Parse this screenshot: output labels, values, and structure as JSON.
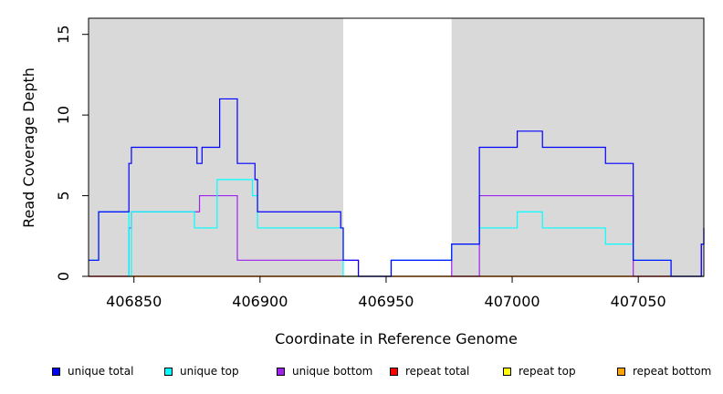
{
  "chart_data": {
    "type": "line",
    "title": "",
    "xlabel": "Coordinate in Reference Genome",
    "ylabel": "Read Coverage Depth",
    "xlim": [
      406832,
      407076
    ],
    "ylim": [
      0,
      16
    ],
    "xticks": [
      406850,
      406900,
      406950,
      407000,
      407050
    ],
    "yticks": [
      0,
      5,
      10,
      15
    ],
    "shaded_regions": [
      [
        406832,
        406933
      ],
      [
        406976,
        407076
      ]
    ],
    "legend_placement": "bottom",
    "series": [
      {
        "name": "unique total",
        "color": "#0000ff",
        "steps": [
          [
            406832,
            1
          ],
          [
            406836,
            4
          ],
          [
            406848,
            7
          ],
          [
            406849,
            8
          ],
          [
            406875,
            7
          ],
          [
            406877,
            8
          ],
          [
            406884,
            11
          ],
          [
            406891,
            7
          ],
          [
            406898,
            6
          ],
          [
            406899,
            4
          ],
          [
            406932,
            3
          ],
          [
            406933,
            1
          ],
          [
            406939,
            0
          ],
          [
            406952,
            1
          ],
          [
            406976,
            2
          ],
          [
            406987,
            8
          ],
          [
            407002,
            9
          ],
          [
            407012,
            8
          ],
          [
            407037,
            7
          ],
          [
            407048,
            1
          ],
          [
            407063,
            0
          ],
          [
            407075,
            2
          ],
          [
            407076,
            3
          ]
        ]
      },
      {
        "name": "unique top",
        "color": "#00ffff",
        "steps": [
          [
            406832,
            1
          ],
          [
            406836,
            4
          ],
          [
            406848,
            0
          ],
          [
            406849,
            4
          ],
          [
            406874,
            3
          ],
          [
            406883,
            6
          ],
          [
            406897,
            5
          ],
          [
            406899,
            3
          ],
          [
            406933,
            0
          ],
          [
            406939,
            0
          ],
          [
            406952,
            1
          ],
          [
            406976,
            2
          ],
          [
            406987,
            3
          ],
          [
            407002,
            4
          ],
          [
            407012,
            3
          ],
          [
            407037,
            2
          ],
          [
            407048,
            1
          ],
          [
            407063,
            0
          ],
          [
            407076,
            0
          ]
        ]
      },
      {
        "name": "unique bottom",
        "color": "#a020f0",
        "steps": [
          [
            406832,
            0
          ],
          [
            406848,
            3
          ],
          [
            406849,
            4
          ],
          [
            406876,
            5
          ],
          [
            406891,
            1
          ],
          [
            406933,
            1
          ],
          [
            406939,
            0
          ],
          [
            406952,
            1
          ],
          [
            406976,
            0
          ],
          [
            406987,
            5
          ],
          [
            407048,
            0
          ],
          [
            407075,
            2
          ],
          [
            407076,
            3
          ]
        ]
      },
      {
        "name": "repeat total",
        "color": "#ff0000",
        "steps": [
          [
            406832,
            0
          ],
          [
            407076,
            0
          ]
        ]
      },
      {
        "name": "repeat top",
        "color": "#ffff00",
        "steps": [
          [
            406832,
            0
          ],
          [
            407076,
            0
          ]
        ]
      },
      {
        "name": "repeat bottom",
        "color": "#ffa500",
        "steps": [
          [
            406832,
            0
          ],
          [
            407076,
            0
          ]
        ]
      }
    ]
  }
}
